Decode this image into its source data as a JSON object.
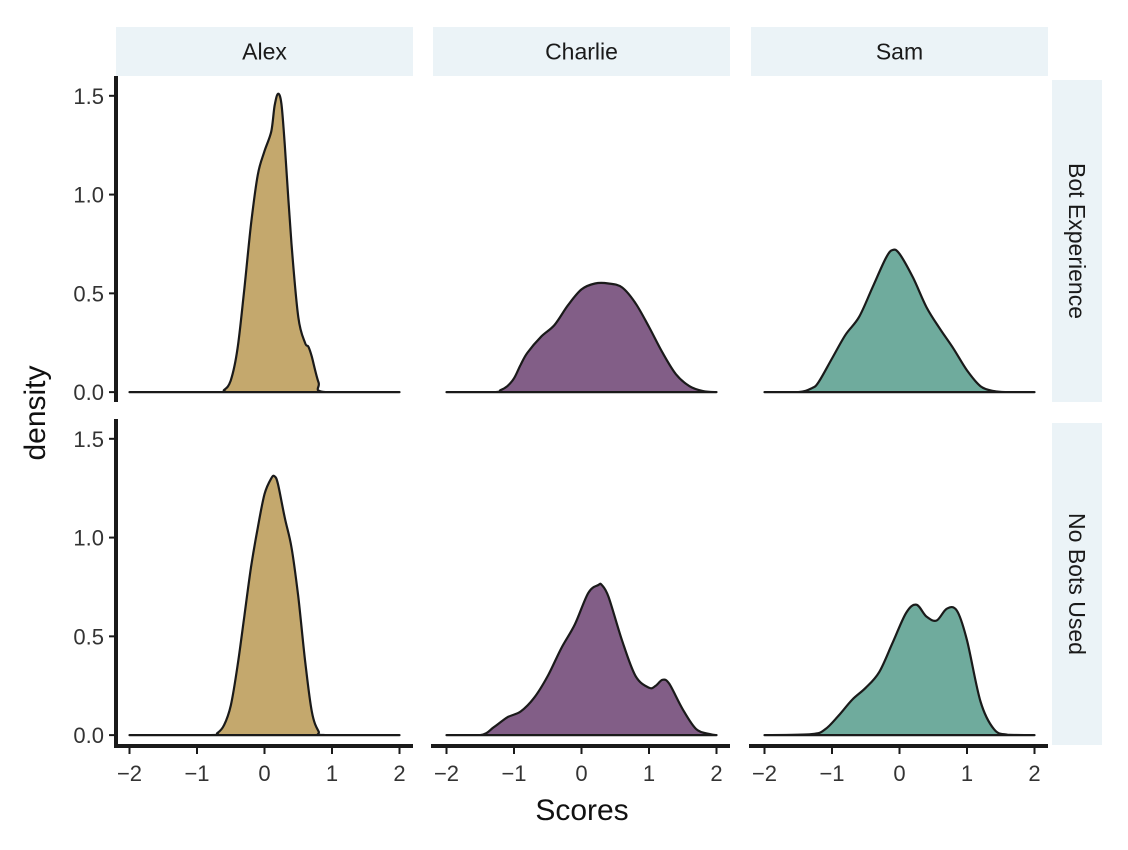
{
  "chart_data": {
    "type": "area",
    "subtype": "density-facet-grid",
    "xlabel": "Scores",
    "ylabel": "density",
    "xlim": [
      -2.2,
      2.2
    ],
    "ylim": [
      -0.05,
      1.58
    ],
    "x_ticks": [
      -2,
      -1,
      0,
      1,
      2
    ],
    "x_tick_labels": [
      "−2",
      "−1",
      "0",
      "1",
      "2"
    ],
    "y_ticks": [
      0,
      0.5,
      1,
      1.5
    ],
    "y_tick_labels": [
      "0.0",
      "0.5",
      "1.0",
      "1.5"
    ],
    "columns": [
      "Alex",
      "Charlie",
      "Sam"
    ],
    "rows": [
      "Bot Experience",
      "No Bots Used"
    ],
    "colors": {
      "Alex": "#c4a86d",
      "Charlie": "#825e87",
      "Sam": "#6fab9d"
    },
    "panels": [
      {
        "row": "Bot Experience",
        "col": "Alex",
        "x": [
          -2,
          -0.7,
          -0.6,
          -0.5,
          -0.4,
          -0.3,
          -0.2,
          -0.1,
          0,
          0.1,
          0.15,
          0.2,
          0.25,
          0.3,
          0.4,
          0.5,
          0.6,
          0.65,
          0.7,
          0.8,
          0.9,
          2
        ],
        "density": [
          0,
          0,
          0.01,
          0.06,
          0.22,
          0.52,
          0.85,
          1.1,
          1.22,
          1.32,
          1.45,
          1.51,
          1.46,
          1.25,
          0.75,
          0.38,
          0.25,
          0.23,
          0.18,
          0.05,
          0,
          0
        ]
      },
      {
        "row": "Bot Experience",
        "col": "Charlie",
        "x": [
          -2,
          -1.3,
          -1.2,
          -1.1,
          -1.0,
          -0.9,
          -0.8,
          -0.6,
          -0.4,
          -0.2,
          0,
          0.2,
          0.4,
          0.6,
          0.8,
          1.0,
          1.2,
          1.4,
          1.6,
          1.8,
          2
        ],
        "density": [
          0,
          0,
          0.01,
          0.03,
          0.07,
          0.14,
          0.2,
          0.28,
          0.34,
          0.44,
          0.52,
          0.55,
          0.55,
          0.53,
          0.45,
          0.33,
          0.2,
          0.09,
          0.03,
          0.005,
          0
        ]
      },
      {
        "row": "Bot Experience",
        "col": "Sam",
        "x": [
          -2,
          -1.5,
          -1.3,
          -1.2,
          -1.0,
          -0.8,
          -0.6,
          -0.4,
          -0.2,
          -0.1,
          0,
          0.2,
          0.4,
          0.6,
          0.8,
          1.0,
          1.2,
          1.4,
          1.6,
          2
        ],
        "density": [
          0,
          0,
          0.02,
          0.05,
          0.17,
          0.29,
          0.38,
          0.53,
          0.68,
          0.72,
          0.7,
          0.58,
          0.43,
          0.32,
          0.22,
          0.11,
          0.03,
          0.005,
          0,
          0
        ]
      },
      {
        "row": "No Bots Used",
        "col": "Alex",
        "x": [
          -2,
          -0.8,
          -0.7,
          -0.6,
          -0.5,
          -0.4,
          -0.3,
          -0.2,
          -0.1,
          0,
          0.1,
          0.15,
          0.2,
          0.3,
          0.4,
          0.5,
          0.6,
          0.7,
          0.8,
          0.9,
          2
        ],
        "density": [
          0,
          0,
          0.01,
          0.05,
          0.15,
          0.35,
          0.6,
          0.85,
          1.05,
          1.22,
          1.3,
          1.31,
          1.27,
          1.1,
          0.95,
          0.7,
          0.38,
          0.12,
          0.02,
          0,
          0
        ]
      },
      {
        "row": "No Bots Used",
        "col": "Charlie",
        "x": [
          -2,
          -1.5,
          -1.3,
          -1.1,
          -0.9,
          -0.7,
          -0.5,
          -0.3,
          -0.1,
          0.1,
          0.25,
          0.3,
          0.4,
          0.6,
          0.8,
          1.0,
          1.1,
          1.2,
          1.3,
          1.5,
          1.7,
          1.9,
          2
        ],
        "density": [
          0,
          0,
          0.04,
          0.09,
          0.12,
          0.19,
          0.3,
          0.44,
          0.56,
          0.72,
          0.76,
          0.76,
          0.7,
          0.48,
          0.3,
          0.24,
          0.25,
          0.28,
          0.26,
          0.13,
          0.03,
          0.005,
          0
        ]
      },
      {
        "row": "No Bots Used",
        "col": "Sam",
        "x": [
          -2,
          -1.3,
          -1.1,
          -0.9,
          -0.7,
          -0.5,
          -0.3,
          -0.1,
          0.1,
          0.25,
          0.4,
          0.55,
          0.7,
          0.85,
          1.0,
          1.2,
          1.4,
          1.6,
          2
        ],
        "density": [
          0,
          0.005,
          0.03,
          0.1,
          0.18,
          0.24,
          0.32,
          0.47,
          0.62,
          0.66,
          0.6,
          0.58,
          0.64,
          0.63,
          0.48,
          0.17,
          0.03,
          0.002,
          0
        ]
      }
    ]
  }
}
